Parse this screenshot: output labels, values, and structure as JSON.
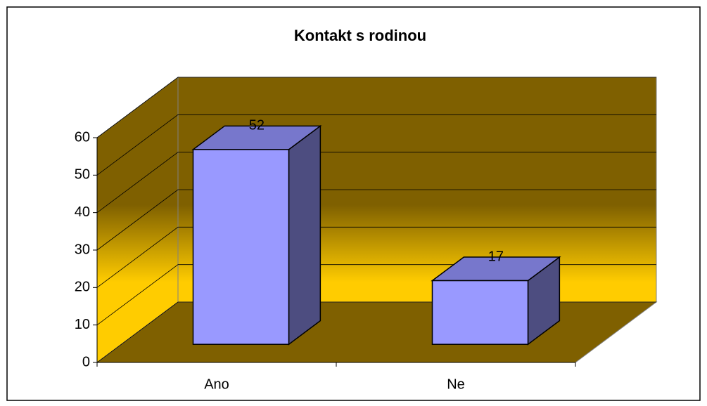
{
  "chart_data": {
    "type": "bar3d",
    "title": "Kontakt s rodinou",
    "categories": [
      "Ano",
      "Ne"
    ],
    "values": [
      52,
      17
    ],
    "color": "#9999ff",
    "top_color": "#7777cc",
    "side_color": "#4d4d80",
    "ylim": [
      0,
      60
    ],
    "yticks": [
      0,
      10,
      20,
      30,
      40,
      50,
      60
    ],
    "grid": true
  }
}
